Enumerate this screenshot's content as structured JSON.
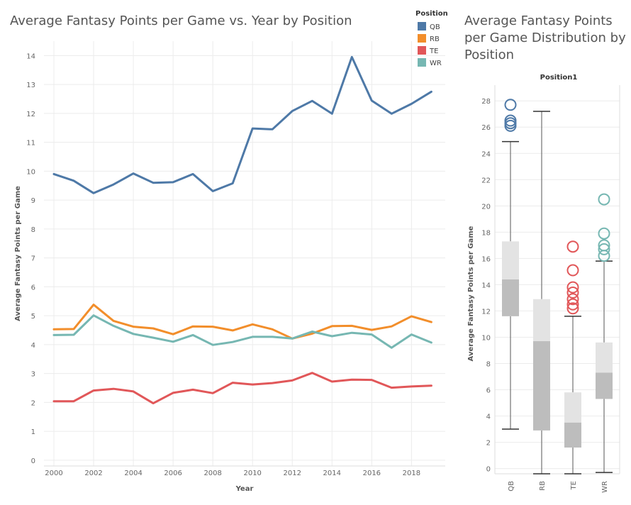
{
  "colors": {
    "QB": "#4e79a7",
    "RB": "#f28e2b",
    "TE": "#e15759",
    "WR": "#76b7b2",
    "grid": "#ececec",
    "axis_text": "#666666",
    "box_upper": "#e3e3e3",
    "box_lower": "#bdbdbd",
    "whisker": "#555555"
  },
  "chart_data": [
    {
      "type": "line",
      "title": "Average Fantasy Points per Game vs. Year by Position",
      "xlabel": "Year",
      "ylabel": "Average Fantasy Points per Game",
      "xlim": [
        1999.5,
        2019.7
      ],
      "ylim": [
        -0.2,
        14.5
      ],
      "x_ticks": [
        "2000",
        "2002",
        "2004",
        "2006",
        "2008",
        "2010",
        "2012",
        "2014",
        "2016",
        "2018"
      ],
      "y_ticks": [
        "0",
        "1",
        "2",
        "3",
        "4",
        "5",
        "6",
        "7",
        "8",
        "9",
        "10",
        "11",
        "12",
        "13",
        "14"
      ],
      "grid": true,
      "legend": {
        "title": "Position",
        "position": "top-right"
      },
      "x": [
        2000,
        2001,
        2002,
        2003,
        2004,
        2005,
        2006,
        2007,
        2008,
        2009,
        2010,
        2011,
        2012,
        2013,
        2014,
        2015,
        2016,
        2017,
        2018,
        2019
      ],
      "series": [
        {
          "name": "QB",
          "values": [
            9.9,
            9.67,
            9.24,
            9.54,
            9.92,
            9.6,
            9.62,
            9.9,
            9.31,
            9.58,
            11.48,
            11.45,
            12.08,
            12.43,
            11.99,
            13.95,
            12.44,
            11.99,
            12.33,
            12.75
          ]
        },
        {
          "name": "RB",
          "values": [
            4.53,
            4.54,
            5.38,
            4.82,
            4.62,
            4.56,
            4.36,
            4.63,
            4.62,
            4.49,
            4.7,
            4.53,
            4.21,
            4.38,
            4.64,
            4.65,
            4.51,
            4.63,
            4.98,
            4.78
          ]
        },
        {
          "name": "TE",
          "values": [
            2.04,
            2.04,
            2.41,
            2.47,
            2.38,
            1.97,
            2.33,
            2.44,
            2.32,
            2.68,
            2.62,
            2.67,
            2.76,
            3.02,
            2.72,
            2.79,
            2.78,
            2.51,
            2.55,
            2.58
          ]
        },
        {
          "name": "WR",
          "values": [
            4.33,
            4.34,
            5.01,
            4.65,
            4.37,
            4.24,
            4.1,
            4.33,
            3.99,
            4.09,
            4.27,
            4.27,
            4.21,
            4.45,
            4.29,
            4.41,
            4.35,
            3.89,
            4.35,
            4.07
          ]
        }
      ]
    },
    {
      "type": "box",
      "title": "Average Fantasy Points per Game Distribution by Position",
      "header": "Position1",
      "ylabel": "Average Fantasy Points per Game",
      "ylim": [
        -0.4,
        29.2
      ],
      "y_ticks": [
        "0",
        "2",
        "4",
        "6",
        "8",
        "10",
        "12",
        "14",
        "16",
        "18",
        "20",
        "22",
        "24",
        "26",
        "28"
      ],
      "grid": true,
      "categories": [
        "QB",
        "RB",
        "TE",
        "WR"
      ],
      "boxes": [
        {
          "name": "QB",
          "min": 3.0,
          "q1": 11.6,
          "median": 14.4,
          "q3": 17.3,
          "max": 24.9,
          "outliers": [
            27.7,
            26.5,
            26.3,
            26.1
          ]
        },
        {
          "name": "RB",
          "min": -0.4,
          "q1": 2.9,
          "median": 9.7,
          "q3": 12.9,
          "max": 27.2,
          "outliers": []
        },
        {
          "name": "TE",
          "min": -0.4,
          "q1": 1.6,
          "median": 3.5,
          "q3": 5.8,
          "max": 11.6,
          "outliers": [
            16.9,
            15.1,
            13.8,
            13.4,
            12.9,
            12.5,
            12.2
          ]
        },
        {
          "name": "WR",
          "min": -0.3,
          "q1": 5.3,
          "median": 7.3,
          "q3": 9.6,
          "max": 15.8,
          "outliers": [
            20.5,
            17.9,
            17.0,
            16.7,
            16.2
          ]
        }
      ]
    }
  ]
}
